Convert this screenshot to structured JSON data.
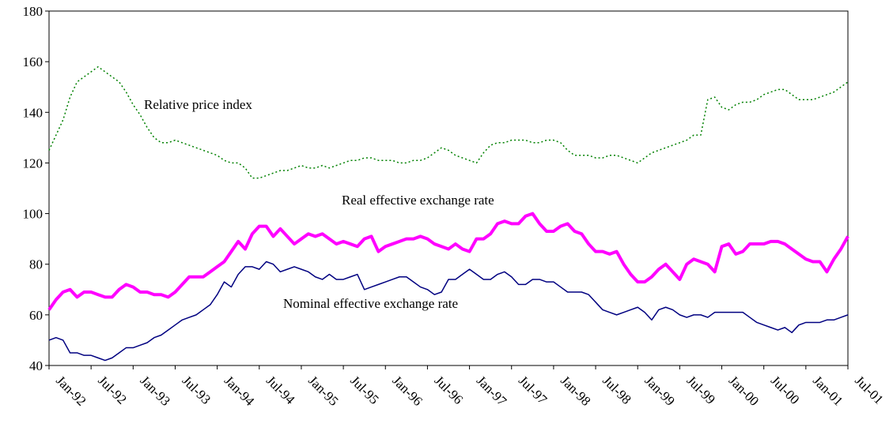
{
  "chart_data": {
    "type": "line",
    "categories": [
      "Jan-92",
      null,
      null,
      null,
      null,
      null,
      "Jul-92",
      null,
      null,
      null,
      null,
      null,
      "Jan-93",
      null,
      null,
      null,
      null,
      null,
      "Jul-93",
      null,
      null,
      null,
      null,
      null,
      "Jan-94",
      null,
      null,
      null,
      null,
      null,
      "Jul-94",
      null,
      null,
      null,
      null,
      null,
      "Jan-95",
      null,
      null,
      null,
      null,
      null,
      "Jul-95",
      null,
      null,
      null,
      null,
      null,
      "Jan-96",
      null,
      null,
      null,
      null,
      null,
      "Jul-96",
      null,
      null,
      null,
      null,
      null,
      "Jan-97",
      null,
      null,
      null,
      null,
      null,
      "Jul-97",
      null,
      null,
      null,
      null,
      null,
      "Jan-98",
      null,
      null,
      null,
      null,
      null,
      "Jul-98",
      null,
      null,
      null,
      null,
      null,
      "Jan-99",
      null,
      null,
      null,
      null,
      null,
      "Jul-99",
      null,
      null,
      null,
      null,
      null,
      "Jan-00",
      null,
      null,
      null,
      null,
      null,
      "Jul-00",
      null,
      null,
      null,
      null,
      null,
      "Jan-01",
      null,
      null,
      null,
      null,
      null,
      "Jul-01"
    ],
    "series": [
      {
        "name": "Relative price index",
        "color": "#008000",
        "dash": true,
        "width": 1.5,
        "values": [
          125,
          131,
          137,
          146,
          152,
          154,
          156,
          158,
          156,
          154,
          152,
          148,
          143,
          139,
          134,
          130,
          128,
          128,
          129,
          128,
          127,
          126,
          125,
          124,
          123,
          121,
          120,
          120,
          118,
          114,
          114,
          115,
          116,
          117,
          117,
          118,
          119,
          118,
          118,
          119,
          118,
          119,
          120,
          121,
          121,
          122,
          122,
          121,
          121,
          121,
          120,
          120,
          121,
          121,
          122,
          124,
          126,
          125,
          123,
          122,
          121,
          120,
          124,
          127,
          128,
          128,
          129,
          129,
          129,
          128,
          128,
          129,
          129,
          128,
          125,
          123,
          123,
          123,
          122,
          122,
          123,
          123,
          122,
          121,
          120,
          122,
          124,
          125,
          126,
          127,
          128,
          129,
          131,
          131,
          145,
          146,
          142,
          141,
          143,
          144,
          144,
          145,
          147,
          148,
          149,
          149,
          147,
          145,
          145,
          145,
          146,
          147,
          148,
          150,
          152
        ]
      },
      {
        "name": "Real effective exchange rate",
        "color": "#ff00ff",
        "dash": false,
        "width": 4,
        "values": [
          62,
          66,
          69,
          70,
          67,
          69,
          69,
          68,
          67,
          67,
          70,
          72,
          71,
          69,
          69,
          68,
          68,
          67,
          69,
          72,
          75,
          75,
          75,
          77,
          79,
          81,
          85,
          89,
          86,
          92,
          95,
          95,
          91,
          94,
          91,
          88,
          90,
          92,
          91,
          92,
          90,
          88,
          89,
          88,
          87,
          90,
          91,
          85,
          87,
          88,
          89,
          90,
          90,
          91,
          90,
          88,
          87,
          86,
          88,
          86,
          85,
          90,
          90,
          92,
          96,
          97,
          96,
          96,
          99,
          100,
          96,
          93,
          93,
          95,
          96,
          93,
          92,
          88,
          85,
          85,
          84,
          85,
          80,
          76,
          73,
          73,
          75,
          78,
          80,
          77,
          74,
          80,
          82,
          81,
          80,
          77,
          87,
          88,
          84,
          85,
          88,
          88,
          88,
          89,
          89,
          88,
          86,
          84,
          82,
          81,
          81,
          77,
          82,
          86,
          91
        ]
      },
      {
        "name": "Nominal effective exchange rate",
        "color": "#000080",
        "dash": false,
        "width": 1.5,
        "values": [
          50,
          51,
          50,
          45,
          45,
          44,
          44,
          43,
          42,
          43,
          45,
          47,
          47,
          48,
          49,
          51,
          52,
          54,
          56,
          58,
          59,
          60,
          62,
          64,
          68,
          73,
          71,
          76,
          79,
          79,
          78,
          81,
          80,
          77,
          78,
          79,
          78,
          77,
          75,
          74,
          76,
          74,
          74,
          75,
          76,
          70,
          71,
          72,
          73,
          74,
          75,
          75,
          73,
          71,
          70,
          68,
          69,
          74,
          74,
          76,
          78,
          76,
          74,
          74,
          76,
          77,
          75,
          72,
          72,
          74,
          74,
          73,
          73,
          71,
          69,
          69,
          69,
          68,
          65,
          62,
          61,
          60,
          61,
          62,
          63,
          61,
          58,
          62,
          63,
          62,
          60,
          59,
          60,
          60,
          59,
          61,
          61,
          61,
          61,
          61,
          59,
          57,
          56,
          55,
          54,
          55,
          53,
          56,
          57,
          57,
          57,
          58,
          58,
          59,
          60
        ]
      }
    ],
    "ylim": [
      40,
      180
    ],
    "yticks": [
      40,
      60,
      80,
      100,
      120,
      140,
      160,
      180
    ],
    "grid": false
  }
}
